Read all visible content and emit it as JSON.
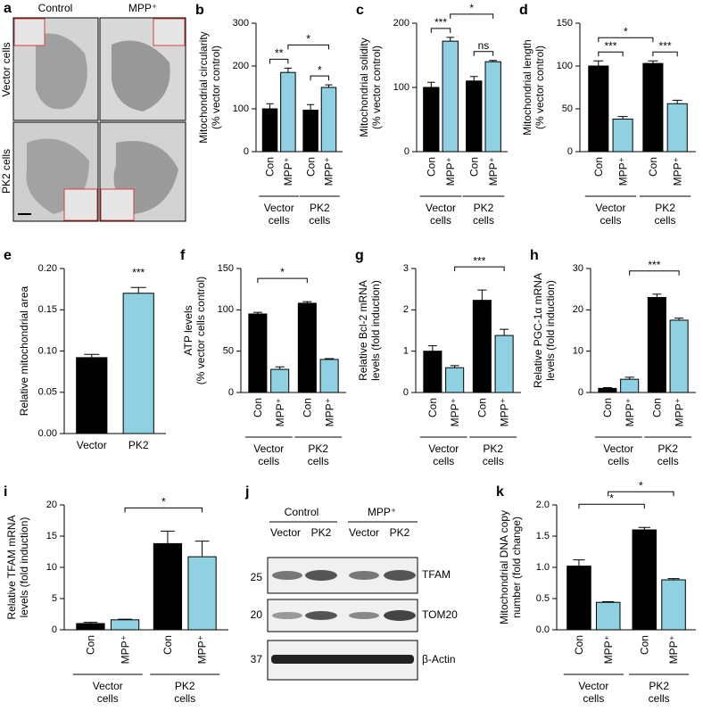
{
  "panel_a": {
    "label": "a",
    "columns": [
      "Control",
      "MPP⁺"
    ],
    "rows": [
      "Vector cells",
      "PK2 cells"
    ]
  },
  "panel_j": {
    "label": "j",
    "groups": [
      "Control",
      "MPP⁺"
    ],
    "lanes": [
      "Vector",
      "PK2",
      "Vector",
      "PK2"
    ],
    "markers": [
      "25",
      "20",
      "37"
    ],
    "proteins": [
      "TFAM",
      "TOM20",
      "β-Actin"
    ]
  },
  "chart_data": [
    {
      "panel": "b",
      "type": "bar",
      "ylabel": [
        "Mitochondrial circularity",
        "(% vector control)"
      ],
      "categories": [
        "Con",
        "MPP⁺",
        "Con",
        "MPP⁺"
      ],
      "groups": [
        [
          "Vector",
          "cells"
        ],
        [
          "PK2",
          "cells"
        ]
      ],
      "values": [
        100,
        185,
        97,
        150
      ],
      "errors": [
        12,
        10,
        13,
        6
      ],
      "colors": [
        "#000000",
        "#8fd0e2",
        "#000000",
        "#8fd0e2"
      ],
      "ylim": [
        0,
        300
      ],
      "yticks": [
        0,
        100,
        200,
        300
      ],
      "significance": [
        {
          "label": "**",
          "bars": [
            0,
            1
          ]
        },
        {
          "label": "*",
          "bars": [
            1,
            3
          ]
        },
        {
          "label": "*",
          "bars": [
            2,
            3
          ]
        }
      ]
    },
    {
      "panel": "c",
      "type": "bar",
      "ylabel": [
        "Mitochondrial solidity",
        "(% vector control)"
      ],
      "categories": [
        "Con",
        "MPP⁺",
        "Con",
        "MPP⁺"
      ],
      "groups": [
        [
          "Vector",
          "cells"
        ],
        [
          "PK2",
          "cells"
        ]
      ],
      "values": [
        100,
        172,
        110,
        140
      ],
      "errors": [
        8,
        6,
        7,
        2
      ],
      "colors": [
        "#000000",
        "#8fd0e2",
        "#000000",
        "#8fd0e2"
      ],
      "ylim": [
        0,
        200
      ],
      "yticks": [
        0,
        100,
        200
      ],
      "significance": [
        {
          "label": "***",
          "bars": [
            0,
            1
          ]
        },
        {
          "label": "ns",
          "bars": [
            2,
            3
          ]
        },
        {
          "label": "*",
          "bars": [
            1,
            3
          ]
        }
      ]
    },
    {
      "panel": "d",
      "type": "bar",
      "ylabel": [
        "Mitochondrial length",
        "(% vector control)"
      ],
      "categories": [
        "Con",
        "MPP⁺",
        "Con",
        "MPP⁺"
      ],
      "groups": [
        [
          "Vector",
          "cells"
        ],
        [
          "PK2",
          "cells"
        ]
      ],
      "values": [
        100,
        38,
        103,
        56
      ],
      "errors": [
        6,
        3,
        3,
        4
      ],
      "colors": [
        "#000000",
        "#8fd0e2",
        "#000000",
        "#8fd0e2"
      ],
      "ylim": [
        0,
        150
      ],
      "yticks": [
        0,
        50,
        100,
        150
      ],
      "significance": [
        {
          "label": "***",
          "bars": [
            0,
            1
          ]
        },
        {
          "label": "***",
          "bars": [
            2,
            3
          ]
        },
        {
          "label": "*",
          "bars": [
            0,
            2
          ]
        }
      ]
    },
    {
      "panel": "e",
      "type": "bar",
      "ylabel": [
        "Relative mitochondrial area"
      ],
      "categories": [
        "Vector",
        "PK2"
      ],
      "values": [
        0.092,
        0.17
      ],
      "errors": [
        0.004,
        0.007
      ],
      "colors": [
        "#000000",
        "#8fd0e2"
      ],
      "ylim": [
        0,
        0.2
      ],
      "yticks": [
        {
          "value": 0,
          "label": "0.00"
        },
        {
          "value": 0.05,
          "label": "0.05"
        },
        {
          "value": 0.1,
          "label": "0.10"
        },
        {
          "value": 0.15,
          "label": "0.15"
        },
        {
          "value": 0.2,
          "label": "0.20"
        }
      ],
      "significance": [
        {
          "label": "***",
          "bars": [
            1,
            1
          ]
        }
      ]
    },
    {
      "panel": "f",
      "type": "bar",
      "ylabel": [
        "ATP levels",
        "(% vector cells control)"
      ],
      "categories": [
        "Con",
        "MPP⁺",
        "Con",
        "MPP⁺"
      ],
      "groups": [
        [
          "Vector",
          "cells"
        ],
        [
          "PK2",
          "cells"
        ]
      ],
      "values": [
        95,
        28,
        108,
        40
      ],
      "errors": [
        2,
        3,
        2,
        1
      ],
      "colors": [
        "#000000",
        "#8fd0e2",
        "#000000",
        "#8fd0e2"
      ],
      "ylim": [
        0,
        150
      ],
      "yticks": [
        0,
        50,
        100,
        150
      ],
      "significance": [
        {
          "label": "*",
          "bars": [
            0,
            2
          ]
        }
      ]
    },
    {
      "panel": "g",
      "type": "bar",
      "ylabel": [
        "Relative Bcl-2 mRNA",
        "levels (fold induction)"
      ],
      "categories": [
        "Con",
        "MPP⁺",
        "Con",
        "MPP⁺"
      ],
      "groups": [
        [
          "Vector",
          "cells"
        ],
        [
          "PK2",
          "cells"
        ]
      ],
      "values": [
        1.0,
        0.6,
        2.23,
        1.38
      ],
      "errors": [
        0.13,
        0.05,
        0.25,
        0.15
      ],
      "colors": [
        "#000000",
        "#8fd0e2",
        "#000000",
        "#8fd0e2"
      ],
      "ylim": [
        0,
        3
      ],
      "yticks": [
        0,
        1,
        2,
        3
      ],
      "significance": [
        {
          "label": "***",
          "bars": [
            1,
            3
          ]
        }
      ]
    },
    {
      "panel": "h",
      "type": "bar",
      "ylabel": [
        "Relative PGC-1α mRNA",
        "levels (fold induction)"
      ],
      "categories": [
        "Con",
        "MPP⁺",
        "Con",
        "MPP⁺"
      ],
      "groups": [
        [
          "Vector",
          "cells"
        ],
        [
          "PK2",
          "cells"
        ]
      ],
      "values": [
        1.0,
        3.2,
        23,
        17.5
      ],
      "errors": [
        0.2,
        0.5,
        0.8,
        0.5
      ],
      "colors": [
        "#000000",
        "#8fd0e2",
        "#000000",
        "#8fd0e2"
      ],
      "ylim": [
        0,
        30
      ],
      "yticks": [
        0,
        10,
        20,
        30
      ],
      "significance": [
        {
          "label": "***",
          "bars": [
            1,
            3
          ]
        }
      ]
    },
    {
      "panel": "i",
      "type": "bar",
      "ylabel": [
        "Relative TFAM mRNA",
        "levels (fold induction)"
      ],
      "categories": [
        "Con",
        "MPP⁺",
        "Con",
        "MPP⁺"
      ],
      "groups": [
        [
          "Vector",
          "cells"
        ],
        [
          "PK2",
          "cells"
        ]
      ],
      "values": [
        1,
        1.6,
        13.8,
        11.7
      ],
      "errors": [
        0.2,
        0.1,
        2,
        2.5
      ],
      "colors": [
        "#000000",
        "#8fd0e2",
        "#000000",
        "#8fd0e2"
      ],
      "ylim": [
        0,
        20
      ],
      "yticks": [
        0,
        5,
        10,
        15,
        20
      ],
      "significance": [
        {
          "label": "*",
          "bars": [
            1,
            3
          ]
        }
      ]
    },
    {
      "panel": "k",
      "type": "bar",
      "ylabel": [
        "Mitochondrial DNA copy",
        "number (fold change)"
      ],
      "categories": [
        "Con",
        "MPP⁺",
        "Con",
        "MPP⁺"
      ],
      "groups": [
        [
          "Vector",
          "cells"
        ],
        [
          "PK2",
          "cells"
        ]
      ],
      "values": [
        1.02,
        0.44,
        1.6,
        0.8
      ],
      "errors": [
        0.1,
        0.01,
        0.04,
        0.02
      ],
      "colors": [
        "#000000",
        "#8fd0e2",
        "#000000",
        "#8fd0e2"
      ],
      "ylim": [
        0,
        2
      ],
      "yticks": [
        {
          "value": 0,
          "label": "0.0"
        },
        {
          "value": 0.5,
          "label": "0.5"
        },
        {
          "value": 1,
          "label": "1.0"
        },
        {
          "value": 1.5,
          "label": "1.5"
        },
        {
          "value": 2,
          "label": "2.0"
        }
      ],
      "significance": [
        {
          "label": "*",
          "bars": [
            0,
            2
          ]
        },
        {
          "label": "*",
          "bars": [
            1,
            3
          ]
        }
      ]
    }
  ]
}
